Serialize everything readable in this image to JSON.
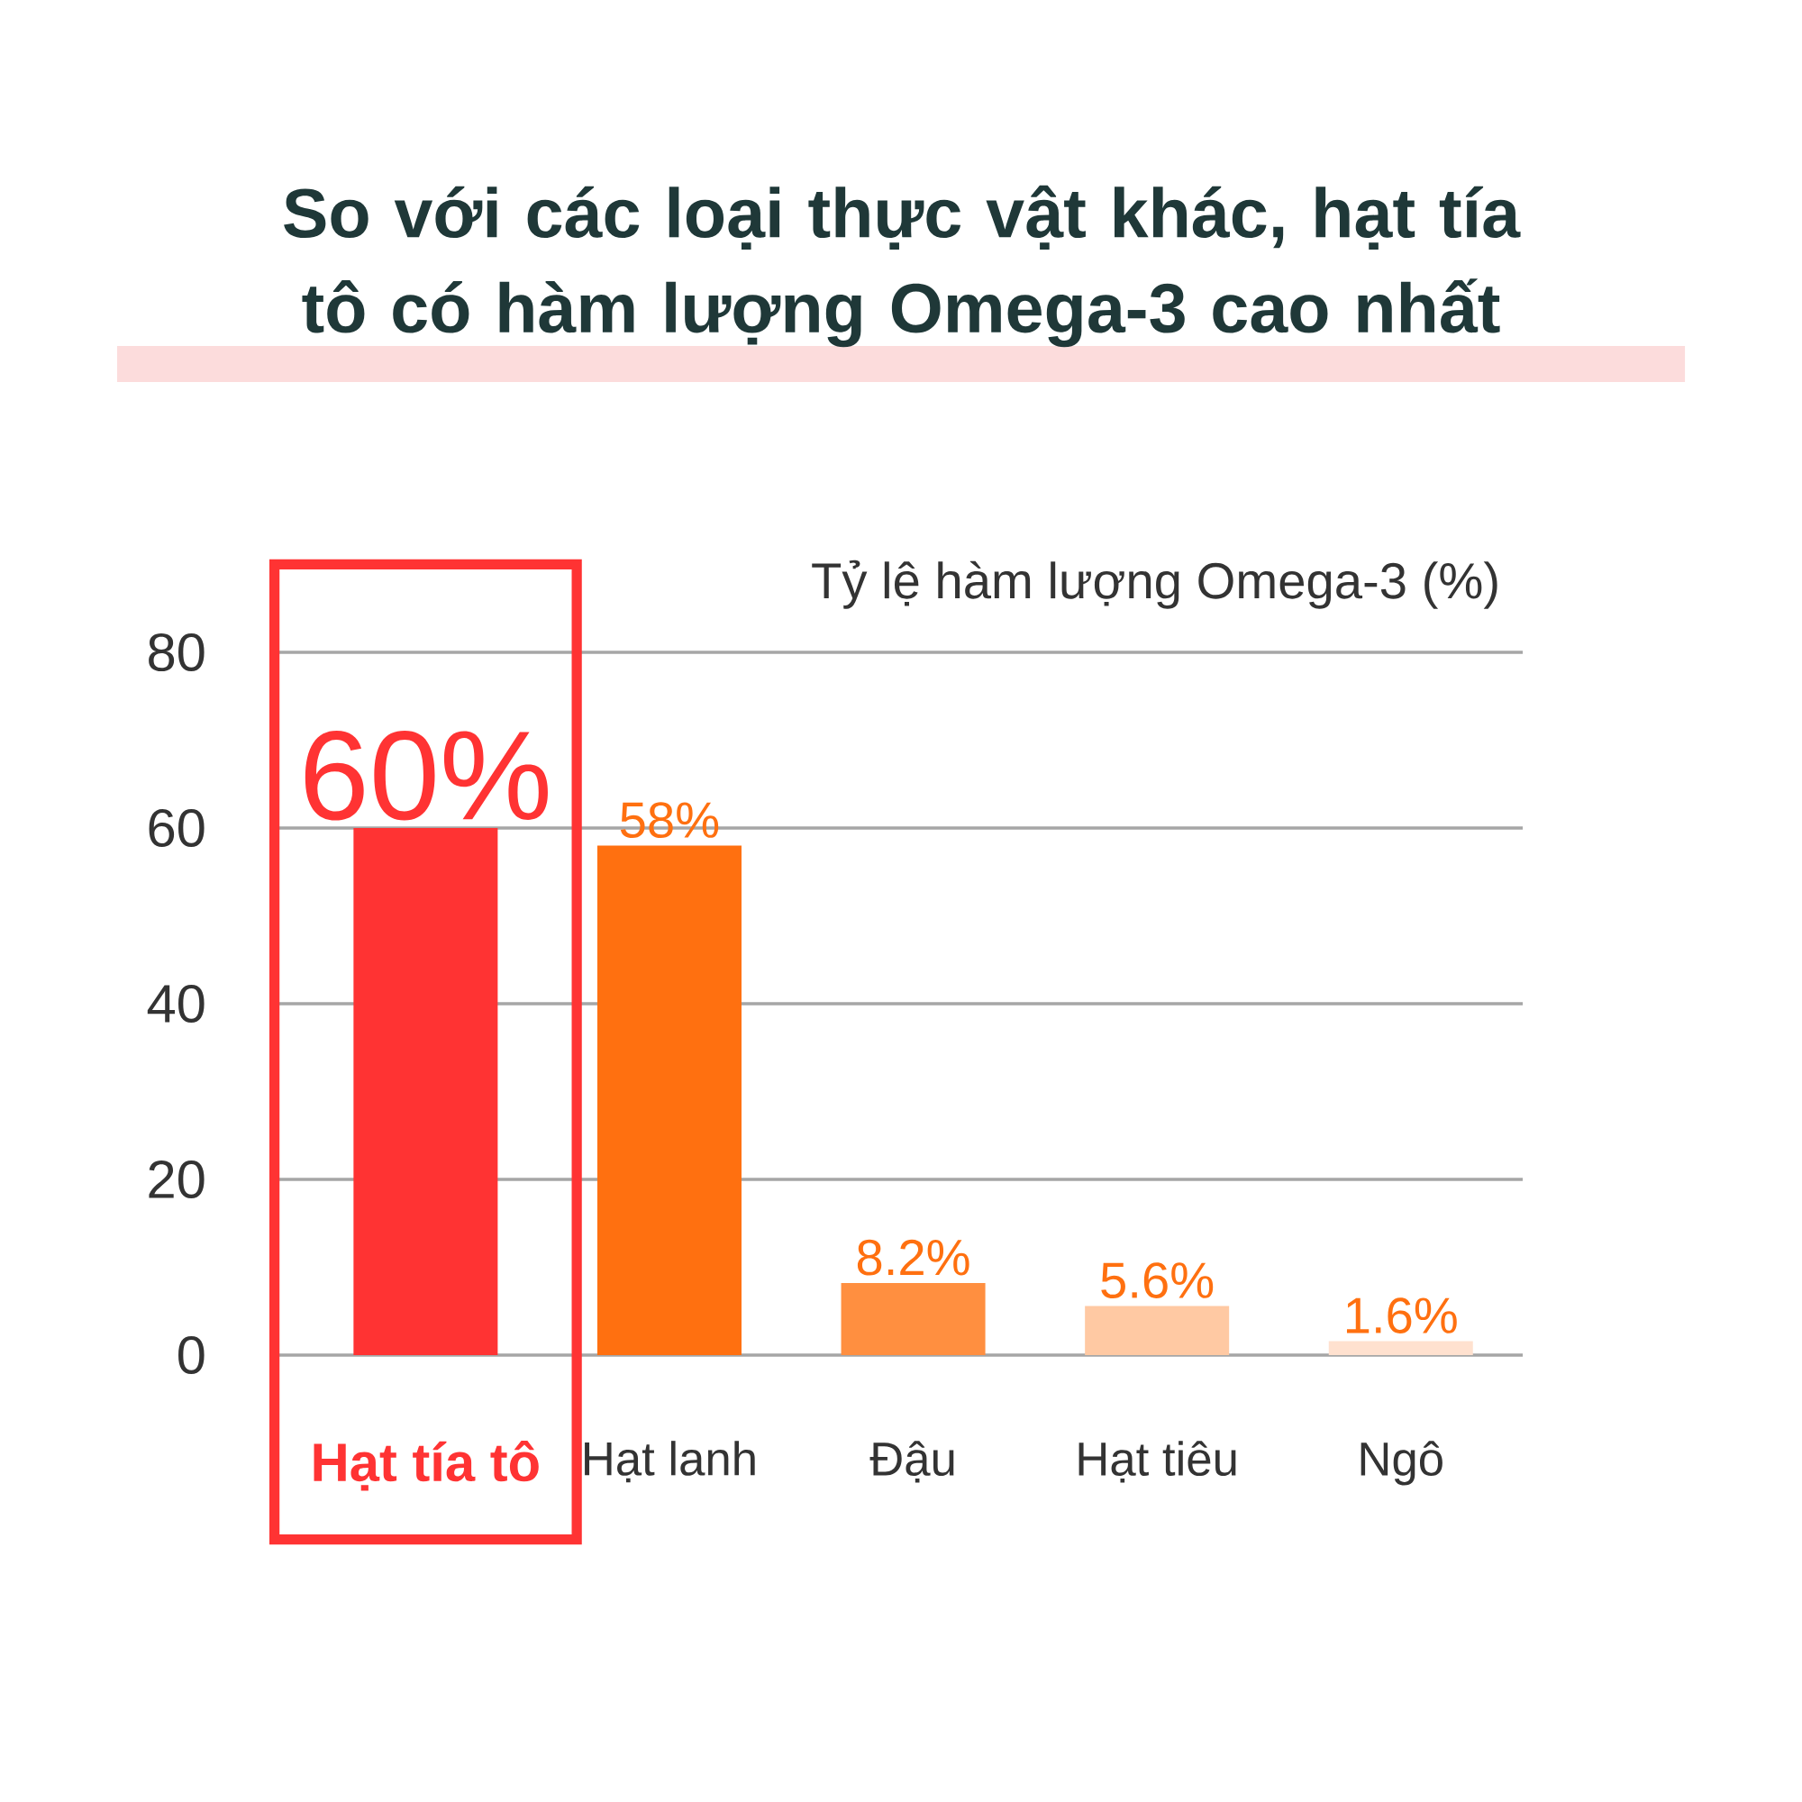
{
  "chart_data": {
    "type": "bar",
    "title": "So với các loại thực vật khác, hạt tía tô có hàm lượng Omega-3 cao nhất",
    "ylabel": "Tỷ lệ hàm lượng Omega-3 (%)",
    "categories": [
      "Hạt tía tô",
      "Hạt lanh",
      "Đậu",
      "Hạt tiêu",
      "Ngô"
    ],
    "values": [
      60,
      58,
      8.2,
      5.6,
      1.6
    ],
    "colors": [
      "#ff3333",
      "#ff7010",
      "#ff8f40",
      "#ffc9a3",
      "#ffe1cf"
    ],
    "value_labels": [
      "60%",
      "58%",
      "8.2%",
      "5.6%",
      "1.6%"
    ],
    "ylim": [
      0,
      80
    ],
    "yticks": [
      0,
      20,
      40,
      60,
      80
    ],
    "grid": "y"
  }
}
